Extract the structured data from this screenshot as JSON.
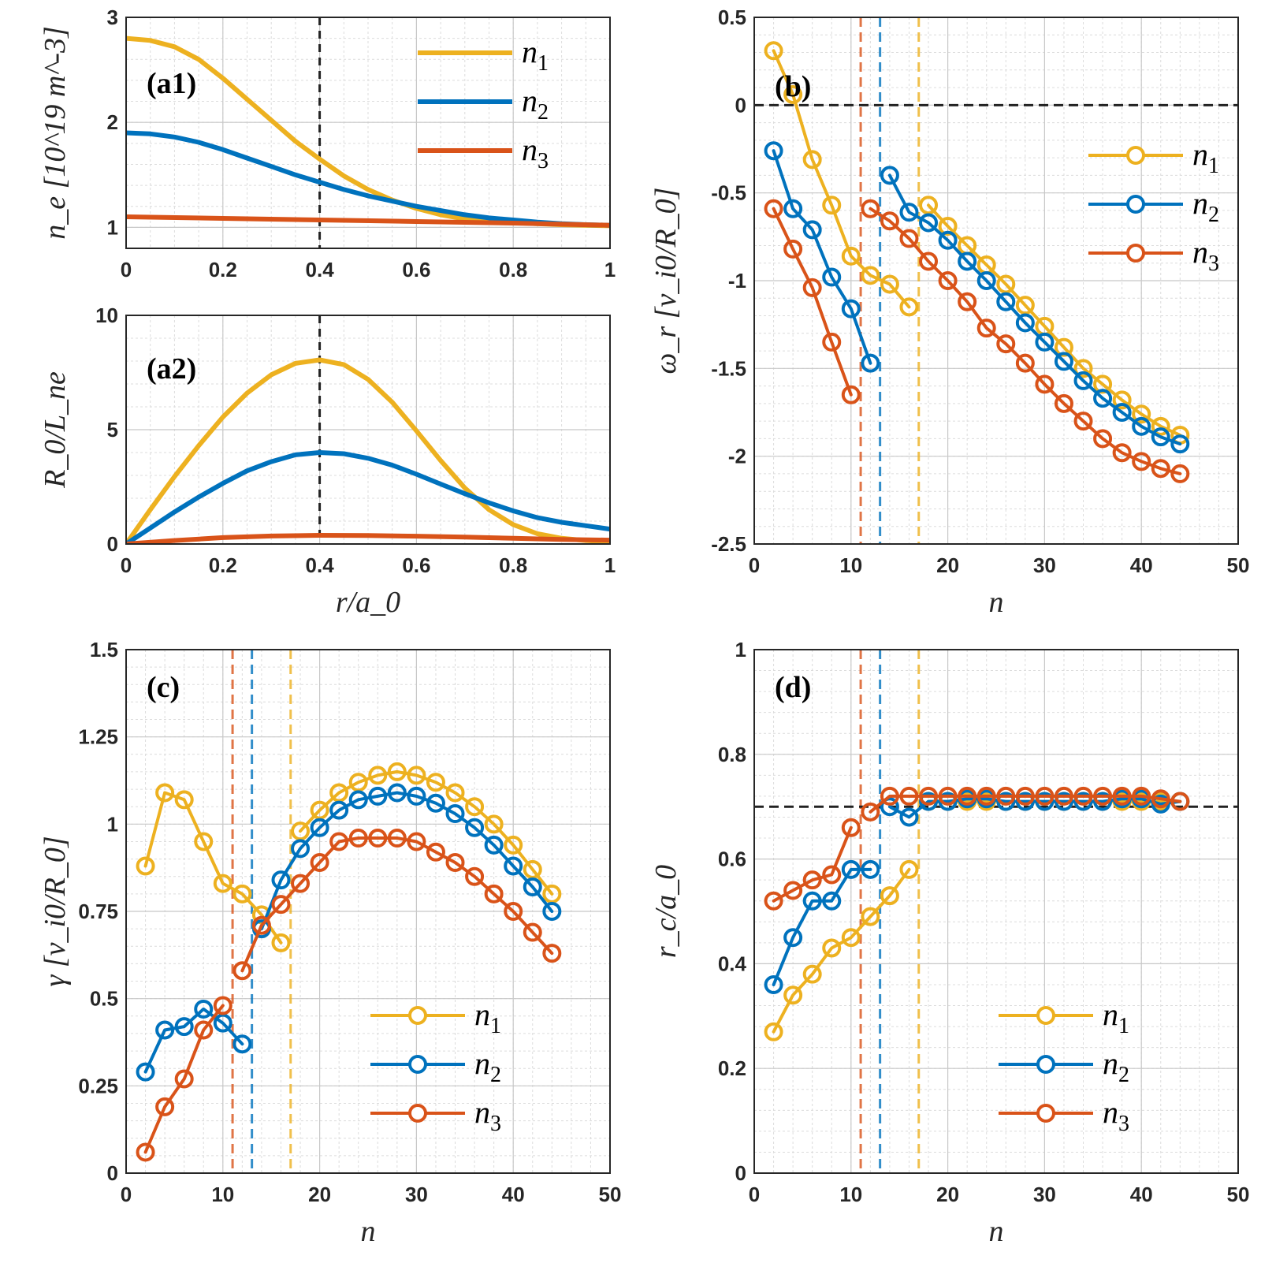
{
  "colors": {
    "n1": "#EDB120",
    "n2": "#0072BD",
    "n3": "#D95319",
    "axis": "#262626",
    "refline": "#222222"
  },
  "legend_labels": [
    {
      "series": "n1",
      "base": "n",
      "sub": "1"
    },
    {
      "series": "n2",
      "base": "n",
      "sub": "2"
    },
    {
      "series": "n3",
      "base": "n",
      "sub": "3"
    }
  ],
  "chart_data": [
    {
      "id": "a1",
      "type": "line",
      "panel_label": "(a1)",
      "ylabel": "n_e [10^19 m^-3]",
      "xlabel": "",
      "xlim": [
        0,
        1
      ],
      "ylim": [
        0.8,
        3
      ],
      "xticks": [
        "0",
        "0.2",
        "0.4",
        "0.6",
        "0.8",
        "1"
      ],
      "xtick_values": [
        0,
        0.2,
        0.4,
        0.6,
        0.8,
        1
      ],
      "yticks": [
        "1",
        "2",
        "3"
      ],
      "ytick_values": [
        1,
        2,
        3
      ],
      "vline_x": 0.4,
      "legend": "top-right",
      "series": [
        {
          "name": "n1",
          "x": [
            0,
            0.05,
            0.1,
            0.15,
            0.2,
            0.25,
            0.3,
            0.35,
            0.4,
            0.45,
            0.5,
            0.55,
            0.6,
            0.65,
            0.7,
            0.75,
            0.8,
            0.85,
            0.9,
            0.95,
            1
          ],
          "values": [
            2.8,
            2.78,
            2.72,
            2.6,
            2.42,
            2.22,
            2.02,
            1.82,
            1.65,
            1.49,
            1.36,
            1.26,
            1.18,
            1.12,
            1.08,
            1.06,
            1.045,
            1.035,
            1.025,
            1.02,
            1.015
          ]
        },
        {
          "name": "n2",
          "x": [
            0,
            0.05,
            0.1,
            0.15,
            0.2,
            0.25,
            0.3,
            0.35,
            0.4,
            0.45,
            0.5,
            0.55,
            0.6,
            0.65,
            0.7,
            0.75,
            0.8,
            0.85,
            0.9,
            0.95,
            1
          ],
          "values": [
            1.9,
            1.89,
            1.86,
            1.81,
            1.74,
            1.66,
            1.58,
            1.5,
            1.43,
            1.36,
            1.3,
            1.25,
            1.2,
            1.16,
            1.12,
            1.09,
            1.07,
            1.05,
            1.035,
            1.025,
            1.02
          ]
        },
        {
          "name": "n3",
          "x": [
            0,
            0.2,
            0.4,
            0.6,
            0.8,
            1
          ],
          "values": [
            1.1,
            1.085,
            1.07,
            1.055,
            1.04,
            1.02
          ]
        }
      ]
    },
    {
      "id": "a2",
      "type": "line",
      "panel_label": "(a2)",
      "ylabel": "R_0/L_ne",
      "xlabel": "r/a_0",
      "xlim": [
        0,
        1
      ],
      "ylim": [
        0,
        10
      ],
      "xticks": [
        "0",
        "0.2",
        "0.4",
        "0.6",
        "0.8",
        "1"
      ],
      "xtick_values": [
        0,
        0.2,
        0.4,
        0.6,
        0.8,
        1
      ],
      "yticks": [
        "0",
        "5",
        "10"
      ],
      "ytick_values": [
        0,
        5,
        10
      ],
      "vline_x": 0.4,
      "legend": "none",
      "series": [
        {
          "name": "n1",
          "x": [
            0,
            0.05,
            0.1,
            0.15,
            0.2,
            0.25,
            0.3,
            0.35,
            0.4,
            0.45,
            0.5,
            0.55,
            0.6,
            0.65,
            0.7,
            0.75,
            0.8,
            0.85,
            0.9,
            0.95,
            1
          ],
          "values": [
            0,
            1.5,
            2.95,
            4.3,
            5.55,
            6.6,
            7.4,
            7.9,
            8.05,
            7.85,
            7.2,
            6.2,
            4.95,
            3.65,
            2.45,
            1.5,
            0.85,
            0.45,
            0.25,
            0.15,
            0.1
          ]
        },
        {
          "name": "n2",
          "x": [
            0,
            0.05,
            0.1,
            0.15,
            0.2,
            0.25,
            0.3,
            0.35,
            0.4,
            0.45,
            0.5,
            0.55,
            0.6,
            0.65,
            0.7,
            0.75,
            0.8,
            0.85,
            0.9,
            0.95,
            1
          ],
          "values": [
            0,
            0.7,
            1.4,
            2.05,
            2.65,
            3.2,
            3.6,
            3.9,
            4.0,
            3.95,
            3.75,
            3.45,
            3.05,
            2.62,
            2.2,
            1.8,
            1.45,
            1.15,
            0.95,
            0.8,
            0.65
          ]
        },
        {
          "name": "n3",
          "x": [
            0,
            0.1,
            0.2,
            0.3,
            0.4,
            0.5,
            0.6,
            0.7,
            0.8,
            0.9,
            1
          ],
          "values": [
            0,
            0.15,
            0.28,
            0.35,
            0.38,
            0.37,
            0.34,
            0.3,
            0.25,
            0.2,
            0.17
          ]
        }
      ]
    },
    {
      "id": "b",
      "type": "line",
      "panel_label": "(b)",
      "ylabel": "ω_r [v_i0/R_0]",
      "xlabel": "n",
      "xlim": [
        0,
        50
      ],
      "ylim": [
        -2.5,
        0.5
      ],
      "xticks": [
        "0",
        "10",
        "20",
        "30",
        "40",
        "50"
      ],
      "xtick_values": [
        0,
        10,
        20,
        30,
        40,
        50
      ],
      "yticks": [
        "-2.5",
        "-2",
        "-1.5",
        "-1",
        "-0.5",
        "0",
        "0.5"
      ],
      "ytick_values": [
        -2.5,
        -2,
        -1.5,
        -1,
        -0.5,
        0,
        0.5
      ],
      "hline_y": 0,
      "vlines": [
        {
          "x": 11,
          "series": "n3"
        },
        {
          "x": 13,
          "series": "n2"
        },
        {
          "x": 17,
          "series": "n1"
        }
      ],
      "legend": "right",
      "series": [
        {
          "name": "n1",
          "segments": [
            {
              "x": [
                2,
                4,
                6,
                8,
                10,
                12,
                14,
                16
              ],
              "values": [
                0.31,
                0.06,
                -0.31,
                -0.57,
                -0.86,
                -0.97,
                -1.02,
                -1.15
              ]
            },
            {
              "x": [
                18,
                20,
                22,
                24,
                26,
                28,
                30,
                32,
                34,
                36,
                38,
                40,
                42,
                44
              ],
              "values": [
                -0.57,
                -0.69,
                -0.8,
                -0.91,
                -1.02,
                -1.14,
                -1.26,
                -1.38,
                -1.5,
                -1.59,
                -1.68,
                -1.76,
                -1.83,
                -1.88
              ]
            }
          ]
        },
        {
          "name": "n2",
          "segments": [
            {
              "x": [
                2,
                4,
                6,
                8,
                10,
                12
              ],
              "values": [
                -0.26,
                -0.59,
                -0.71,
                -0.98,
                -1.16,
                -1.47
              ]
            },
            {
              "x": [
                14,
                16,
                18,
                20,
                22,
                24,
                26,
                28,
                30,
                32,
                34,
                36,
                38,
                40,
                42,
                44
              ],
              "values": [
                -0.4,
                -0.61,
                -0.67,
                -0.77,
                -0.89,
                -1.0,
                -1.12,
                -1.24,
                -1.35,
                -1.46,
                -1.57,
                -1.67,
                -1.75,
                -1.83,
                -1.89,
                -1.93
              ]
            }
          ]
        },
        {
          "name": "n3",
          "segments": [
            {
              "x": [
                2,
                4,
                6,
                8,
                10
              ],
              "values": [
                -0.59,
                -0.82,
                -1.04,
                -1.35,
                -1.65
              ]
            },
            {
              "x": [
                12,
                14,
                16,
                18,
                20,
                22,
                24,
                26,
                28,
                30,
                32,
                34,
                36,
                38,
                40,
                42,
                44
              ],
              "values": [
                -0.59,
                -0.66,
                -0.76,
                -0.89,
                -1.0,
                -1.12,
                -1.27,
                -1.36,
                -1.47,
                -1.59,
                -1.7,
                -1.8,
                -1.9,
                -1.98,
                -2.03,
                -2.07,
                -2.1
              ]
            }
          ]
        }
      ]
    },
    {
      "id": "c",
      "type": "line",
      "panel_label": "(c)",
      "ylabel": "γ [v_i0/R_0]",
      "xlabel": "n",
      "xlim": [
        0,
        50
      ],
      "ylim": [
        0,
        1.5
      ],
      "xticks": [
        "0",
        "10",
        "20",
        "30",
        "40",
        "50"
      ],
      "xtick_values": [
        0,
        10,
        20,
        30,
        40,
        50
      ],
      "yticks": [
        "0",
        "0.25",
        "0.5",
        "0.75",
        "1",
        "1.25",
        "1.5"
      ],
      "ytick_values": [
        0,
        0.25,
        0.5,
        0.75,
        1,
        1.25,
        1.5
      ],
      "vlines": [
        {
          "x": 11,
          "series": "n3"
        },
        {
          "x": 13,
          "series": "n2"
        },
        {
          "x": 17,
          "series": "n1"
        }
      ],
      "legend": "bottom-right",
      "series": [
        {
          "name": "n1",
          "segments": [
            {
              "x": [
                2,
                4,
                6,
                8,
                10,
                12,
                14,
                16
              ],
              "values": [
                0.88,
                1.09,
                1.07,
                0.95,
                0.83,
                0.8,
                0.74,
                0.66
              ]
            },
            {
              "x": [
                18,
                20,
                22,
                24,
                26,
                28,
                30,
                32,
                34,
                36,
                38,
                40,
                42,
                44
              ],
              "values": [
                0.98,
                1.04,
                1.09,
                1.12,
                1.14,
                1.15,
                1.14,
                1.12,
                1.09,
                1.05,
                1.0,
                0.94,
                0.87,
                0.8
              ]
            }
          ]
        },
        {
          "name": "n2",
          "segments": [
            {
              "x": [
                2,
                4,
                6,
                8,
                10,
                12
              ],
              "values": [
                0.29,
                0.41,
                0.42,
                0.47,
                0.43,
                0.37
              ]
            },
            {
              "x": [
                14,
                16,
                18,
                20,
                22,
                24,
                26,
                28,
                30,
                32,
                34,
                36,
                38,
                40,
                42,
                44
              ],
              "values": [
                0.7,
                0.84,
                0.93,
                0.99,
                1.04,
                1.07,
                1.08,
                1.09,
                1.08,
                1.06,
                1.03,
                0.99,
                0.94,
                0.88,
                0.82,
                0.75
              ]
            }
          ]
        },
        {
          "name": "n3",
          "segments": [
            {
              "x": [
                2,
                4,
                6,
                8,
                10
              ],
              "values": [
                0.06,
                0.19,
                0.27,
                0.41,
                0.48
              ]
            },
            {
              "x": [
                12,
                14,
                16,
                18,
                20,
                22,
                24,
                26,
                28,
                30,
                32,
                34,
                36,
                38,
                40,
                42,
                44
              ],
              "values": [
                0.58,
                0.71,
                0.77,
                0.83,
                0.89,
                0.95,
                0.96,
                0.96,
                0.96,
                0.95,
                0.92,
                0.89,
                0.85,
                0.8,
                0.75,
                0.69,
                0.63
              ]
            }
          ]
        }
      ]
    },
    {
      "id": "d",
      "type": "line",
      "panel_label": "(d)",
      "ylabel": "r_c/a_0",
      "xlabel": "n",
      "xlim": [
        0,
        50
      ],
      "ylim": [
        0,
        1
      ],
      "xticks": [
        "0",
        "10",
        "20",
        "30",
        "40",
        "50"
      ],
      "xtick_values": [
        0,
        10,
        20,
        30,
        40,
        50
      ],
      "yticks": [
        "0",
        "0.2",
        "0.4",
        "0.6",
        "0.8",
        "1"
      ],
      "ytick_values": [
        0,
        0.2,
        0.4,
        0.6,
        0.8,
        1
      ],
      "hline_y": 0.7,
      "vlines": [
        {
          "x": 11,
          "series": "n3"
        },
        {
          "x": 13,
          "series": "n2"
        },
        {
          "x": 17,
          "series": "n1"
        }
      ],
      "legend": "bottom-right",
      "series": [
        {
          "name": "n1",
          "segments": [
            {
              "x": [
                2,
                4,
                6,
                8,
                10,
                12,
                14,
                16
              ],
              "values": [
                0.27,
                0.34,
                0.38,
                0.43,
                0.45,
                0.49,
                0.53,
                0.58
              ]
            },
            {
              "x": [
                18,
                20,
                22,
                24,
                26,
                28,
                30,
                32,
                34,
                36,
                38,
                40,
                42,
                44
              ],
              "values": [
                0.71,
                0.71,
                0.71,
                0.71,
                0.71,
                0.71,
                0.71,
                0.71,
                0.71,
                0.71,
                0.71,
                0.71,
                0.71,
                0.71
              ]
            }
          ]
        },
        {
          "name": "n2",
          "segments": [
            {
              "x": [
                2,
                4,
                6,
                8,
                10,
                12
              ],
              "values": [
                0.36,
                0.45,
                0.52,
                0.52,
                0.58,
                0.58
              ]
            },
            {
              "x": [
                14,
                16,
                18,
                20,
                22,
                24,
                26,
                28,
                30,
                32,
                34,
                36,
                38,
                40,
                42,
                44
              ],
              "values": [
                0.7,
                0.68,
                0.71,
                0.71,
                0.715,
                0.715,
                0.71,
                0.71,
                0.71,
                0.71,
                0.71,
                0.71,
                0.715,
                0.715,
                0.705,
                0.71
              ]
            }
          ]
        },
        {
          "name": "n3",
          "segments": [
            {
              "x": [
                2,
                4,
                6,
                8,
                10
              ],
              "values": [
                0.52,
                0.54,
                0.56,
                0.57,
                0.66
              ]
            },
            {
              "x": [
                12,
                14,
                16,
                18,
                20,
                22,
                24,
                26,
                28,
                30,
                32,
                34,
                36,
                38,
                40,
                42,
                44
              ],
              "values": [
                0.69,
                0.72,
                0.72,
                0.72,
                0.72,
                0.72,
                0.72,
                0.72,
                0.72,
                0.72,
                0.72,
                0.72,
                0.72,
                0.72,
                0.72,
                0.715,
                0.71
              ]
            }
          ]
        }
      ]
    }
  ]
}
